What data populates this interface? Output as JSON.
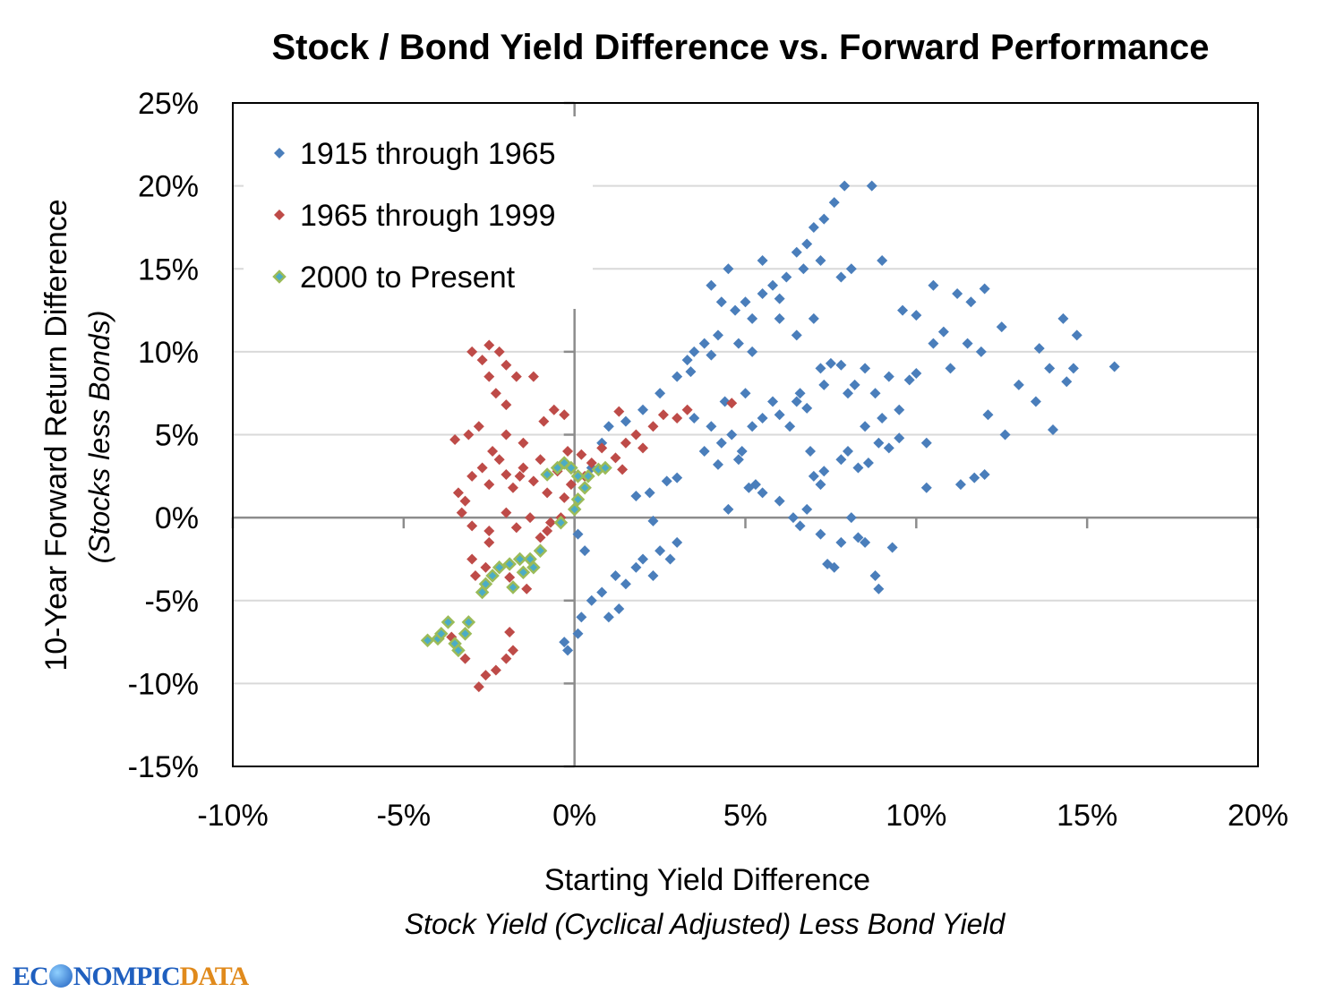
{
  "chart_data": {
    "type": "scatter",
    "title": "Stock / Bond Yield Difference vs. Forward Performance",
    "xlabel": "Starting Yield Difference",
    "xlabel_sub": "Stock Yield  (Cyclical Adjusted) Less Bond Yield",
    "ylabel": "10-Year Forward Return Difference",
    "ylabel_sub": "(Stocks less Bonds)",
    "xlim": [
      -10,
      20
    ],
    "ylim": [
      -15,
      25
    ],
    "x_ticks": [
      "-10%",
      "-5%",
      "0%",
      "5%",
      "10%",
      "15%",
      "20%"
    ],
    "y_ticks": [
      "25%",
      "20%",
      "15%",
      "10%",
      "5%",
      "0%",
      "-5%",
      "-10%",
      "-15%"
    ],
    "grid": "horizontal",
    "legend_position": "top-left",
    "series": [
      {
        "name": "1915 through 1965",
        "color": "#4a7ebb",
        "marker": "diamond",
        "points": [
          [
            -0.3,
            -7.5
          ],
          [
            -0.2,
            -8
          ],
          [
            0.1,
            -7
          ],
          [
            0.2,
            -6
          ],
          [
            0.5,
            -5
          ],
          [
            0.8,
            -4.5
          ],
          [
            1,
            -6
          ],
          [
            1.3,
            -5.5
          ],
          [
            1.5,
            -4
          ],
          [
            1.2,
            -3.5
          ],
          [
            1.8,
            -3
          ],
          [
            2,
            -2.5
          ],
          [
            2.3,
            -3.5
          ],
          [
            2.5,
            -2
          ],
          [
            2.8,
            -2.5
          ],
          [
            3,
            -1.5
          ],
          [
            0.3,
            -2
          ],
          [
            0.1,
            -1
          ],
          [
            2.2,
            1.5
          ],
          [
            1.8,
            1.3
          ],
          [
            2.7,
            2.2
          ],
          [
            3,
            2.4
          ],
          [
            2.3,
            -0.2
          ],
          [
            0.5,
            3
          ],
          [
            0.8,
            4.5
          ],
          [
            1,
            5.5
          ],
          [
            1.5,
            5.8
          ],
          [
            2,
            6.5
          ],
          [
            2.5,
            7.5
          ],
          [
            3,
            8.5
          ],
          [
            3.3,
            9.5
          ],
          [
            3.8,
            10.5
          ],
          [
            4.2,
            11
          ],
          [
            4.7,
            12.5
          ],
          [
            5.2,
            12
          ],
          [
            5.5,
            13.5
          ],
          [
            5.8,
            14
          ],
          [
            6,
            13.2
          ],
          [
            6.2,
            14.5
          ],
          [
            6.5,
            16
          ],
          [
            6.8,
            16.5
          ],
          [
            7,
            17.5
          ],
          [
            7.3,
            18
          ],
          [
            7.6,
            19
          ],
          [
            7.9,
            20
          ],
          [
            8.7,
            20
          ],
          [
            6.7,
            15
          ],
          [
            7.2,
            15.5
          ],
          [
            7.8,
            14.5
          ],
          [
            8.1,
            15
          ],
          [
            9,
            15.5
          ],
          [
            5.5,
            15.5
          ],
          [
            4.5,
            15
          ],
          [
            4,
            14
          ],
          [
            4.3,
            13
          ],
          [
            5,
            13
          ],
          [
            6,
            12
          ],
          [
            6.5,
            11
          ],
          [
            7,
            12
          ],
          [
            4.8,
            10.5
          ],
          [
            5.2,
            10
          ],
          [
            3.5,
            10
          ],
          [
            4,
            9.8
          ],
          [
            3.4,
            8.8
          ],
          [
            3.5,
            6
          ],
          [
            4,
            5.5
          ],
          [
            4.3,
            4.5
          ],
          [
            4.6,
            5
          ],
          [
            4.9,
            4
          ],
          [
            5.2,
            5.5
          ],
          [
            5.5,
            6
          ],
          [
            5.8,
            7
          ],
          [
            6,
            6.2
          ],
          [
            6.3,
            5.5
          ],
          [
            6.6,
            7.5
          ],
          [
            5,
            7.5
          ],
          [
            4.4,
            7
          ],
          [
            3.8,
            4
          ],
          [
            4.2,
            3.2
          ],
          [
            4.8,
            3.5
          ],
          [
            5.3,
            2
          ],
          [
            5.5,
            1.5
          ],
          [
            5.1,
            1.8
          ],
          [
            6,
            1
          ],
          [
            6.4,
            0
          ],
          [
            6.6,
            -0.5
          ],
          [
            6.8,
            0.5
          ],
          [
            7.2,
            -1
          ],
          [
            7.4,
            -2.8
          ],
          [
            7.6,
            -3
          ],
          [
            7.8,
            -1.5
          ],
          [
            8.1,
            0
          ],
          [
            8.3,
            -1.2
          ],
          [
            8.5,
            -1.5
          ],
          [
            8.8,
            -3.5
          ],
          [
            8.9,
            -4.3
          ],
          [
            9.3,
            -1.8
          ],
          [
            4.5,
            0.5
          ],
          [
            7,
            2.5
          ],
          [
            7.2,
            2
          ],
          [
            7.8,
            3.5
          ],
          [
            8,
            4
          ],
          [
            8.3,
            3
          ],
          [
            8.6,
            3.3
          ],
          [
            8.9,
            4.5
          ],
          [
            9.2,
            4.2
          ],
          [
            9.5,
            4.8
          ],
          [
            8.5,
            5.5
          ],
          [
            8.8,
            7.5
          ],
          [
            9,
            6
          ],
          [
            8,
            7.5
          ],
          [
            8.2,
            8
          ],
          [
            7.3,
            8
          ],
          [
            8.5,
            9
          ],
          [
            9.2,
            8.5
          ],
          [
            9.5,
            6.5
          ],
          [
            10.3,
            4.5
          ],
          [
            10.3,
            1.8
          ],
          [
            11.3,
            2
          ],
          [
            11.7,
            2.4
          ],
          [
            12,
            2.6
          ],
          [
            12.6,
            5
          ],
          [
            12.1,
            6.2
          ],
          [
            13,
            8
          ],
          [
            13.5,
            7
          ],
          [
            14,
            5.3
          ],
          [
            13.9,
            9
          ],
          [
            14.4,
            8.2
          ],
          [
            14.6,
            9
          ],
          [
            15.8,
            9.1
          ],
          [
            14.7,
            11
          ],
          [
            14.3,
            12
          ],
          [
            13.6,
            10.2
          ],
          [
            12.5,
            11.5
          ],
          [
            11.5,
            10.5
          ],
          [
            11.9,
            10
          ],
          [
            11,
            9
          ],
          [
            10.5,
            10.5
          ],
          [
            10.8,
            11.2
          ],
          [
            11.6,
            13
          ],
          [
            12,
            13.8
          ],
          [
            11.2,
            13.5
          ],
          [
            10.5,
            14
          ],
          [
            9.6,
            12.5
          ],
          [
            10,
            12.2
          ],
          [
            9.8,
            8.3
          ],
          [
            10,
            8.7
          ],
          [
            7.2,
            9
          ],
          [
            7.5,
            9.3
          ],
          [
            7.8,
            9.2
          ],
          [
            6.5,
            7
          ],
          [
            6.8,
            6.6
          ],
          [
            6.9,
            4
          ],
          [
            7.3,
            2.8
          ]
        ]
      },
      {
        "name": "1965 through 1999",
        "color": "#be4b48",
        "marker": "diamond",
        "points": [
          [
            -3,
            10
          ],
          [
            -2.7,
            9.5
          ],
          [
            -2.5,
            10.4
          ],
          [
            -2.2,
            10
          ],
          [
            -2,
            9.2
          ],
          [
            -1.7,
            8.5
          ],
          [
            -1.2,
            8.5
          ],
          [
            -2.5,
            8.5
          ],
          [
            -2.3,
            7.5
          ],
          [
            -2,
            6.8
          ],
          [
            -3.1,
            5
          ],
          [
            -3.5,
            4.7
          ],
          [
            -2.8,
            5.5
          ],
          [
            -2.4,
            4
          ],
          [
            -2,
            5
          ],
          [
            -1.5,
            4.5
          ],
          [
            -0.9,
            5.8
          ],
          [
            -0.6,
            6.5
          ],
          [
            -0.3,
            6.2
          ],
          [
            -3.4,
            1.5
          ],
          [
            -3.2,
            1
          ],
          [
            -3,
            2.5
          ],
          [
            -2.7,
            3
          ],
          [
            -2.5,
            2
          ],
          [
            -2.2,
            3.5
          ],
          [
            -2,
            2.6
          ],
          [
            -1.8,
            1.8
          ],
          [
            -1.5,
            3
          ],
          [
            -1.2,
            2.2
          ],
          [
            -1,
            3.5
          ],
          [
            -0.8,
            1.5
          ],
          [
            -0.5,
            2.8
          ],
          [
            -0.2,
            4
          ],
          [
            0.2,
            3.8
          ],
          [
            0.5,
            3.3
          ],
          [
            0.8,
            4.2
          ],
          [
            1.2,
            3.6
          ],
          [
            1.5,
            4.5
          ],
          [
            1.8,
            5
          ],
          [
            2,
            4.2
          ],
          [
            2.3,
            5.5
          ],
          [
            2.6,
            6.2
          ],
          [
            3,
            6
          ],
          [
            3.3,
            6.5
          ],
          [
            4.6,
            6.9
          ],
          [
            1.3,
            6.4
          ],
          [
            1.4,
            2.9
          ],
          [
            -3.3,
            0.3
          ],
          [
            -3,
            -0.5
          ],
          [
            -2.5,
            -0.8
          ],
          [
            -2,
            0.3
          ],
          [
            -1.7,
            -0.6
          ],
          [
            -1.3,
            0
          ],
          [
            -1,
            -1.2
          ],
          [
            -0.7,
            -0.3
          ],
          [
            -0.4,
            0
          ],
          [
            -2.5,
            -1.5
          ],
          [
            -3,
            -2.5
          ],
          [
            -2.6,
            -3
          ],
          [
            -1.9,
            -3.6
          ],
          [
            -1.4,
            -4.3
          ],
          [
            -2.9,
            -3.5
          ],
          [
            -0.8,
            -0.8
          ],
          [
            -3.6,
            -7.2
          ],
          [
            -3.4,
            -8
          ],
          [
            -3.2,
            -8.5
          ],
          [
            -2.6,
            -9.5
          ],
          [
            -2.8,
            -10.2
          ],
          [
            -2.3,
            -9.2
          ],
          [
            -2,
            -8.5
          ],
          [
            -1.9,
            -6.9
          ],
          [
            -1.8,
            -8
          ],
          [
            -1.6,
            2.5
          ],
          [
            -0.3,
            1.2
          ],
          [
            -0.1,
            2
          ],
          [
            0.3,
            2.5
          ]
        ]
      },
      {
        "name": "2000 to Present",
        "color": "#9bbb59",
        "marker": "diamond",
        "points": [
          [
            -0.8,
            2.6
          ],
          [
            -0.5,
            3
          ],
          [
            -0.3,
            3.3
          ],
          [
            -0.1,
            3
          ],
          [
            0.1,
            2.5
          ],
          [
            0.4,
            2.5
          ],
          [
            0.7,
            2.9
          ],
          [
            0.9,
            3
          ],
          [
            0.3,
            1.8
          ],
          [
            0.1,
            1.1
          ],
          [
            0,
            0.5
          ],
          [
            -0.4,
            -0.3
          ],
          [
            -1,
            -2
          ],
          [
            -1.3,
            -2.5
          ],
          [
            -1.6,
            -2.5
          ],
          [
            -1.9,
            -2.8
          ],
          [
            -2.2,
            -3
          ],
          [
            -2.4,
            -3.5
          ],
          [
            -2.6,
            -4
          ],
          [
            -2.7,
            -4.5
          ],
          [
            -1.8,
            -4.2
          ],
          [
            -1.5,
            -3.3
          ],
          [
            -1.2,
            -3
          ],
          [
            -4.3,
            -7.4
          ],
          [
            -4,
            -7.3
          ],
          [
            -3.9,
            -7
          ],
          [
            -3.7,
            -6.3
          ],
          [
            -3.5,
            -7.6
          ],
          [
            -3.4,
            -8
          ],
          [
            -3.1,
            -6.3
          ],
          [
            -3.2,
            -7
          ]
        ]
      }
    ]
  },
  "logo": {
    "part1": "EC",
    "part2": "NOMPIC",
    "part3": "DATA"
  }
}
